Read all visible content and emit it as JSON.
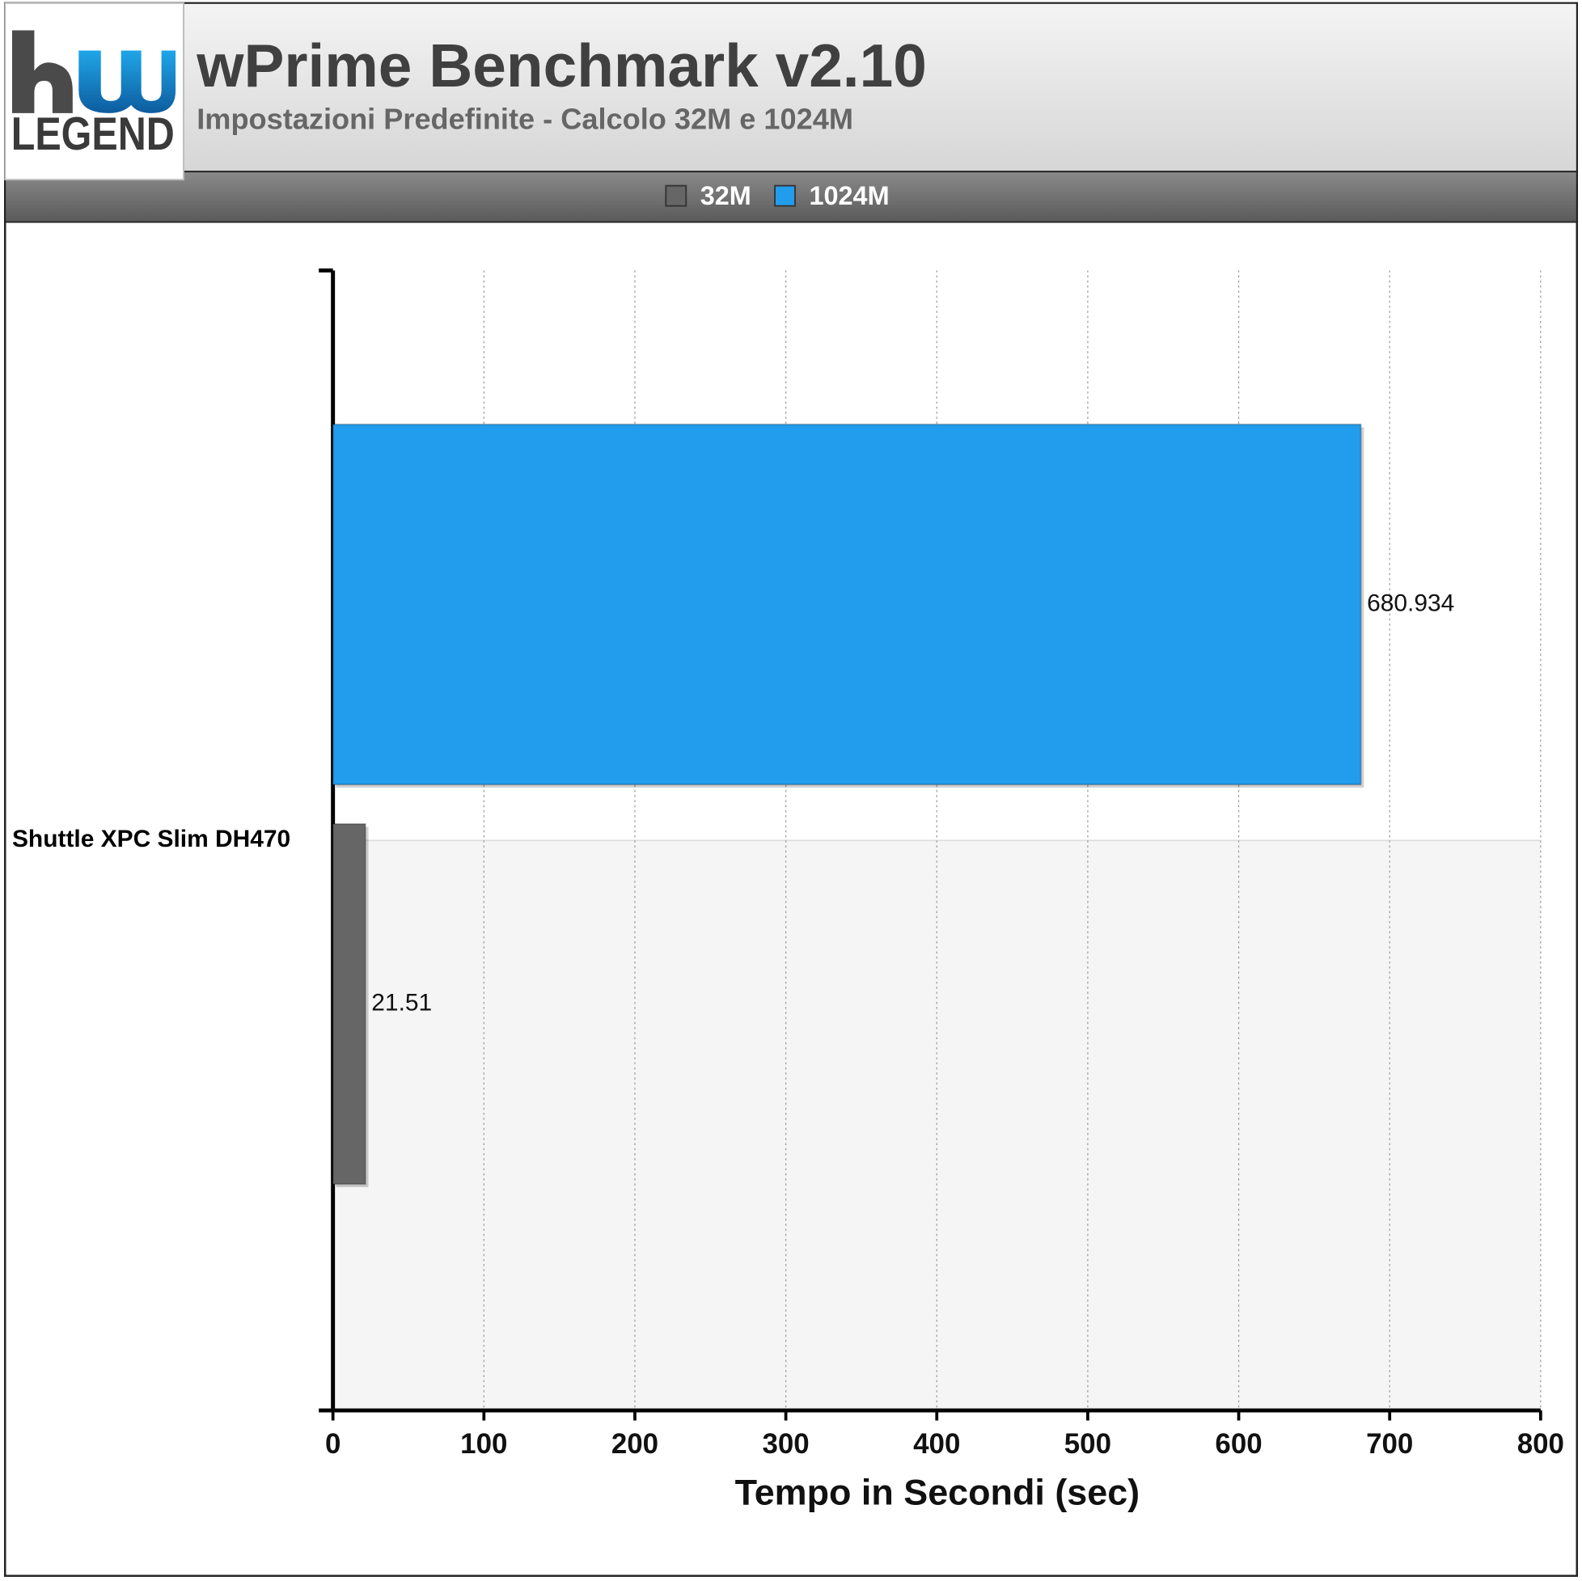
{
  "logo": "LEGEND",
  "chart_data": {
    "type": "hbar",
    "title": "wPrime Benchmark v2.10",
    "subtitle": "Impostazioni Predefinite - Calcolo 32M e 1024M",
    "x_label": "Tempo in Secondi (sec)",
    "categories": [
      "Shuttle XPC Slim DH470"
    ],
    "series": [
      {
        "name": "32M",
        "color": "#666666",
        "values": [
          21.51
        ]
      },
      {
        "name": "1024M",
        "color": "#229ded",
        "values": [
          680.934
        ]
      }
    ],
    "xlim": [
      0,
      800
    ],
    "xticks": [
      0,
      100,
      200,
      300,
      400,
      500,
      600,
      700,
      800
    ],
    "grid": true,
    "legend": "top"
  }
}
